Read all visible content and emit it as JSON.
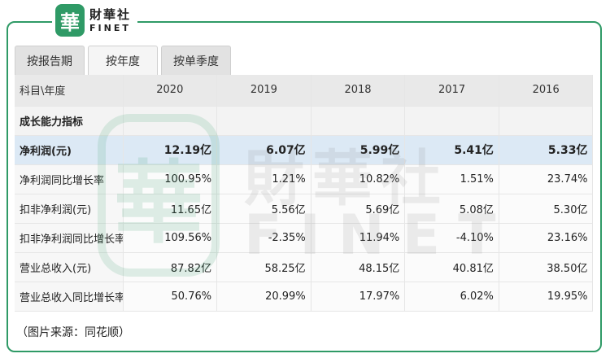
{
  "logo": {
    "seal": "華",
    "name_cn": "財華社",
    "name_en": "FINET"
  },
  "tabs": [
    {
      "label": "按报告期",
      "active": false
    },
    {
      "label": "按年度",
      "active": true
    },
    {
      "label": "按单季度",
      "active": false
    }
  ],
  "table": {
    "header": [
      "科目\\年度",
      "2020",
      "2019",
      "2018",
      "2017",
      "2016"
    ],
    "section_label": "成长能力指标",
    "rows": [
      {
        "label": "净利润(元)",
        "values": [
          "12.19亿",
          "6.07亿",
          "5.99亿",
          "5.41亿",
          "5.33亿"
        ],
        "highlight": true
      },
      {
        "label": "净利润同比增长率",
        "values": [
          "100.95%",
          "1.21%",
          "10.82%",
          "1.51%",
          "23.74%"
        ]
      },
      {
        "label": "扣非净利润(元)",
        "values": [
          "11.65亿",
          "5.56亿",
          "5.69亿",
          "5.08亿",
          "5.30亿"
        ]
      },
      {
        "label": "扣非净利润同比增长率",
        "values": [
          "109.56%",
          "-2.35%",
          "11.94%",
          "-4.10%",
          "23.16%"
        ]
      },
      {
        "label": "营业总收入(元)",
        "values": [
          "87.82亿",
          "58.25亿",
          "48.15亿",
          "40.81亿",
          "38.50亿"
        ]
      },
      {
        "label": "营业总收入同比增长率",
        "values": [
          "50.76%",
          "20.99%",
          "17.97%",
          "6.02%",
          "19.95%"
        ]
      }
    ]
  },
  "watermark": {
    "seal": "華",
    "cn": "財華社",
    "en": "FINET"
  },
  "caption": "（图片来源：同花顺）",
  "colors": {
    "brand_green": "#2f9a66",
    "highlight_row": "#dce9f5",
    "header_bg": "#e9e9e9"
  }
}
